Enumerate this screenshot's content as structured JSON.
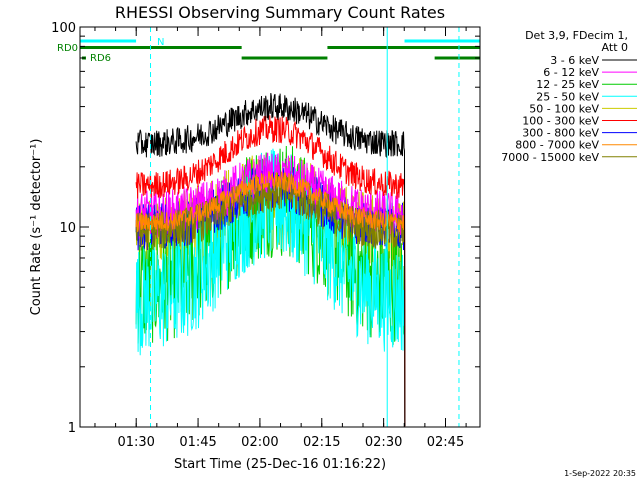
{
  "chart_data": {
    "type": "line",
    "title": "RHESSI Observing Summary Count Rates",
    "xlabel": "Start Time (25-Dec-16 01:16:22)",
    "ylabel": "Count Rate (s⁻¹ detector⁻¹)",
    "yscale": "log",
    "ylim": [
      1,
      100
    ],
    "xlim_minutes": [
      0,
      97
    ],
    "xticks": [
      {
        "min": 13.63,
        "label": "01:30"
      },
      {
        "min": 28.63,
        "label": "01:45"
      },
      {
        "min": 43.63,
        "label": "02:00"
      },
      {
        "min": 58.63,
        "label": "02:15"
      },
      {
        "min": 73.63,
        "label": "02:30"
      },
      {
        "min": 88.63,
        "label": "02:45"
      }
    ],
    "yticks": [
      {
        "value": 1,
        "label": "1"
      },
      {
        "value": 10,
        "label": "10"
      },
      {
        "value": 100,
        "label": "100"
      }
    ],
    "data_window_minutes": [
      13.6,
      78.7
    ],
    "legend_header": [
      "Det 3,9, FDecim 1,",
      "Att 0"
    ],
    "series": [
      {
        "name": "3 - 6 keV",
        "color": "#000000",
        "baseline": 26,
        "peak": 40,
        "noise": 0.07
      },
      {
        "name": "6 - 12 keV",
        "color": "#ff00ff",
        "baseline": 11.5,
        "peak": 18,
        "noise": 0.12
      },
      {
        "name": "12 - 25 keV",
        "color": "#00cc00",
        "baseline": 5.0,
        "peak": 14,
        "noise": 0.3
      },
      {
        "name": "25 - 50 keV",
        "color": "#00ffff",
        "baseline": 4.3,
        "peak": 13,
        "noise": 0.28
      },
      {
        "name": "50 - 100 keV",
        "color": "#cccc00",
        "baseline": 9.5,
        "peak": 16,
        "noise": 0.18
      },
      {
        "name": "100 - 300 keV",
        "color": "#ff0000",
        "baseline": 16,
        "peak": 31,
        "noise": 0.07
      },
      {
        "name": "300 - 800 keV",
        "color": "#0000ff",
        "baseline": 10,
        "peak": 16,
        "noise": 0.12
      },
      {
        "name": "800 - 7000 keV",
        "color": "#ff8800",
        "baseline": 10.5,
        "peak": 17,
        "noise": 0.05
      },
      {
        "name": "7000 - 15000 keV",
        "color": "#808000",
        "baseline": 9.5,
        "peak": 15,
        "noise": 0.1
      }
    ],
    "flags": {
      "N": {
        "label": "N",
        "color": "#00ffff",
        "segments_minutes": [
          [
            0,
            13.6
          ],
          [
            78.7,
            97
          ]
        ]
      },
      "RD0": {
        "label": "RD0",
        "color": "#008000",
        "segments_minutes": [
          [
            0,
            39.2
          ],
          [
            60.0,
            97
          ]
        ]
      },
      "RD6": {
        "label": "RD6",
        "color": "#008000",
        "segments_minutes": [
          [
            39.2,
            60.0
          ],
          [
            86.0,
            97
          ]
        ]
      }
    },
    "solid_markers_minutes": [
      0,
      74.5
    ],
    "dashed_markers_minutes": [
      17.1,
      91.9
    ],
    "grid": false,
    "legend_placement": "right"
  },
  "footer": {
    "timestamp": "1-Sep-2022 20:35"
  }
}
